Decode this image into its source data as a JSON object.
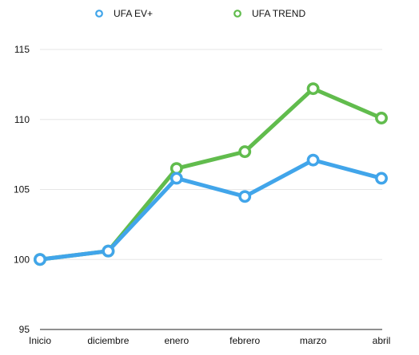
{
  "chart_data": {
    "type": "line",
    "title": "",
    "xlabel": "",
    "ylabel": "",
    "categories": [
      "Inicio",
      "diciembre",
      "enero",
      "febrero",
      "marzo",
      "abril"
    ],
    "ylim": [
      95,
      115
    ],
    "yticks": [
      95,
      100,
      105,
      110,
      115
    ],
    "grid": true,
    "legend_position": "top",
    "series": [
      {
        "name": "UFA EV+",
        "color": "#41a5ea",
        "values": [
          100.0,
          100.6,
          105.8,
          104.5,
          107.1,
          105.8
        ]
      },
      {
        "name": "UFA TREND",
        "color": "#61bc4d",
        "values": [
          100.0,
          100.6,
          106.5,
          107.7,
          112.2,
          110.1
        ]
      }
    ]
  }
}
